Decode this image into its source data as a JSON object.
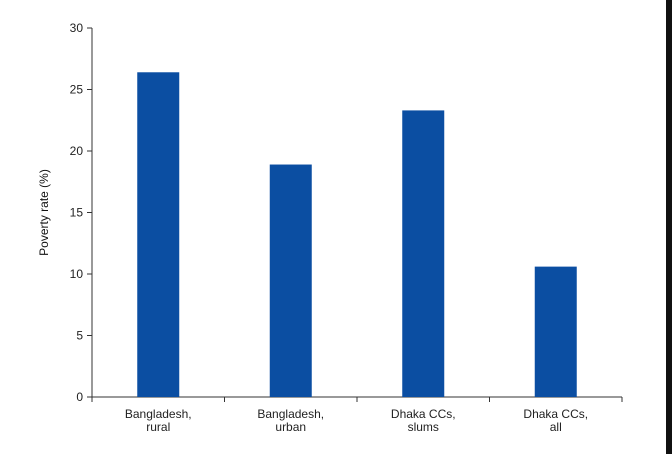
{
  "chart_data": {
    "type": "bar",
    "categories": [
      [
        "Bangladesh,",
        "rural"
      ],
      [
        "Bangladesh,",
        "urban"
      ],
      [
        "Dhaka CCs,",
        "slums"
      ],
      [
        "Dhaka CCs,",
        "all"
      ]
    ],
    "values": [
      26.4,
      18.9,
      23.3,
      10.6
    ],
    "ylabel": "Poverty rate (%)",
    "ylim": [
      0,
      30
    ],
    "yticks": [
      0,
      5,
      10,
      15,
      20,
      25,
      30
    ],
    "bar_color": "#0b4ea2",
    "grid": false
  }
}
